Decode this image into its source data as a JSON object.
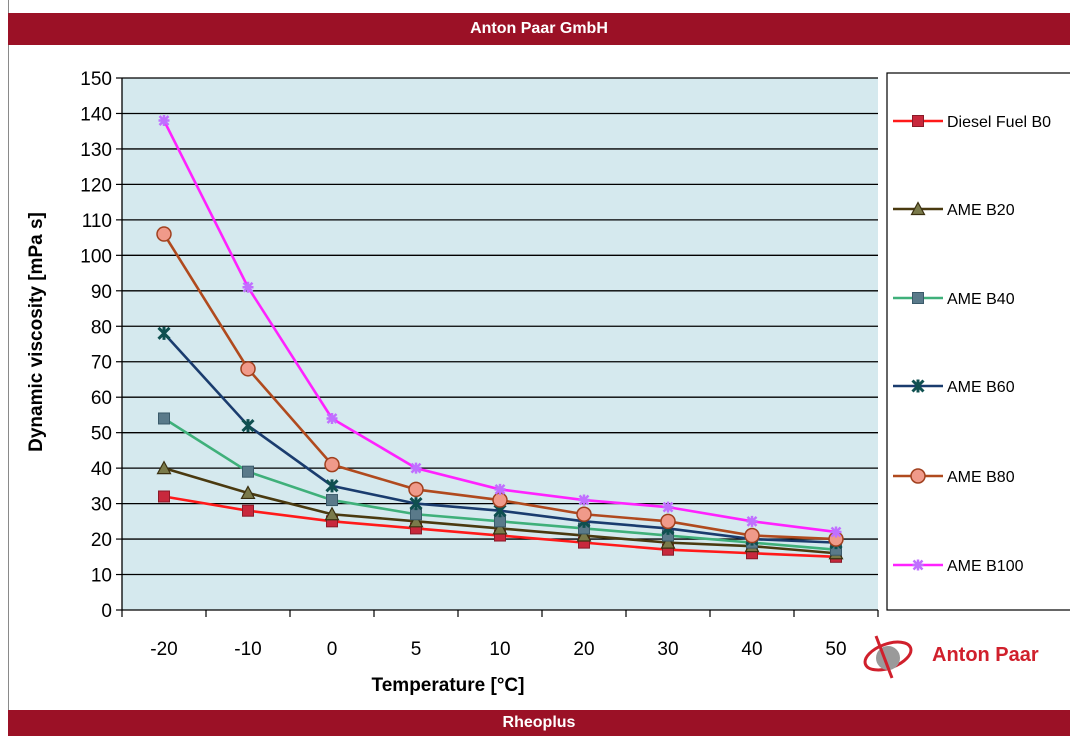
{
  "header": {
    "title": "Anton Paar GmbH"
  },
  "footer": {
    "title": "Rheoplus"
  },
  "logo": {
    "text": "Anton Paar",
    "color": "#d0202c"
  },
  "chart_data": {
    "type": "line",
    "title": "",
    "xlabel": "Temperature [°C]",
    "ylabel": "Dynamic viscosity  [mPa s]",
    "categories": [
      "-20",
      "-10",
      "0",
      "5",
      "10",
      "20",
      "30",
      "40",
      "50"
    ],
    "ylim": [
      0,
      150
    ],
    "yticks": [
      0,
      10,
      20,
      30,
      40,
      50,
      60,
      70,
      80,
      90,
      100,
      110,
      120,
      130,
      140,
      150
    ],
    "grid": true,
    "legend_position": "right",
    "plot_background": "#d5e9ee",
    "series": [
      {
        "name": "Diesel Fuel B0",
        "color": "#ff1a1a",
        "marker": "square-red",
        "values": [
          32,
          28,
          25,
          23,
          21,
          19,
          17,
          16,
          15
        ]
      },
      {
        "name": "AME B20",
        "color": "#4a3a10",
        "marker": "triangle",
        "values": [
          40,
          33,
          27,
          25,
          23,
          21,
          19,
          18,
          16
        ]
      },
      {
        "name": "AME B40",
        "color": "#3fb07a",
        "marker": "square-gray",
        "values": [
          54,
          39,
          31,
          27,
          25,
          23,
          21,
          19,
          17
        ]
      },
      {
        "name": "AME B60",
        "color": "#1a3c6e",
        "marker": "cross",
        "values": [
          78,
          52,
          35,
          30,
          28,
          25,
          23,
          20,
          19
        ]
      },
      {
        "name": "AME B80",
        "color": "#b04a1e",
        "marker": "circle",
        "values": [
          106,
          68,
          41,
          34,
          31,
          27,
          25,
          21,
          20
        ]
      },
      {
        "name": "AME B100",
        "color": "#ff22ff",
        "marker": "plus",
        "values": [
          138,
          91,
          54,
          40,
          34,
          31,
          29,
          25,
          22
        ]
      }
    ]
  }
}
